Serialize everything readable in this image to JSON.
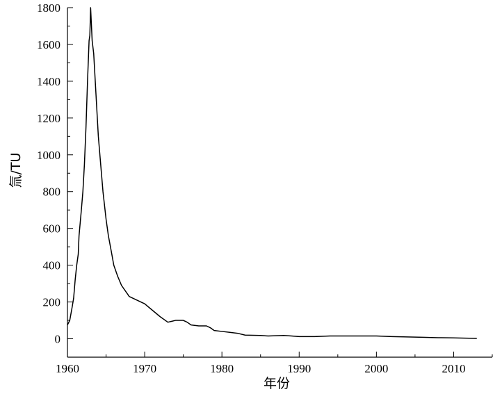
{
  "chart_data": {
    "type": "line",
    "title": "",
    "xlabel": "年份",
    "ylabel": "氚/TU",
    "xlim": [
      1960,
      2015
    ],
    "ylim": [
      -100,
      1800
    ],
    "x_ticks": [
      1960,
      1970,
      1980,
      1990,
      2000,
      2010
    ],
    "x_tick_labels": [
      "1960",
      "1970",
      "1980",
      "1990",
      "2000",
      "2010"
    ],
    "y_ticks": [
      0,
      200,
      400,
      600,
      800,
      1000,
      1200,
      1400,
      1600,
      1800
    ],
    "y_tick_labels": [
      "0",
      "200",
      "400",
      "600",
      "800",
      "1000",
      "1200",
      "1400",
      "1600",
      "1800"
    ],
    "grid": false,
    "series": [
      {
        "color": "#000000",
        "points": [
          [
            1960.0,
            75
          ],
          [
            1960.3,
            100
          ],
          [
            1960.6,
            170
          ],
          [
            1960.8,
            220
          ],
          [
            1961.0,
            320
          ],
          [
            1961.2,
            400
          ],
          [
            1961.4,
            460
          ],
          [
            1961.5,
            560
          ],
          [
            1961.8,
            700
          ],
          [
            1962.0,
            800
          ],
          [
            1962.2,
            950
          ],
          [
            1962.4,
            1150
          ],
          [
            1962.6,
            1400
          ],
          [
            1962.8,
            1620
          ],
          [
            1962.9,
            1650
          ],
          [
            1963.0,
            1800
          ],
          [
            1963.2,
            1620
          ],
          [
            1963.4,
            1550
          ],
          [
            1963.6,
            1400
          ],
          [
            1963.8,
            1250
          ],
          [
            1964.0,
            1100
          ],
          [
            1964.3,
            950
          ],
          [
            1964.6,
            800
          ],
          [
            1965.0,
            650
          ],
          [
            1965.3,
            560
          ],
          [
            1965.7,
            470
          ],
          [
            1966.0,
            400
          ],
          [
            1966.5,
            340
          ],
          [
            1967.0,
            290
          ],
          [
            1967.5,
            260
          ],
          [
            1968.0,
            230
          ],
          [
            1969.0,
            210
          ],
          [
            1970.0,
            190
          ],
          [
            1971.0,
            155
          ],
          [
            1972.0,
            120
          ],
          [
            1973.0,
            90
          ],
          [
            1973.5,
            95
          ],
          [
            1974.0,
            100
          ],
          [
            1975.0,
            100
          ],
          [
            1975.5,
            90
          ],
          [
            1976.0,
            75
          ],
          [
            1977.0,
            70
          ],
          [
            1978.0,
            70
          ],
          [
            1978.5,
            60
          ],
          [
            1979.0,
            45
          ],
          [
            1980.0,
            40
          ],
          [
            1981.0,
            35
          ],
          [
            1982.0,
            30
          ],
          [
            1983.0,
            20
          ],
          [
            1985.0,
            18
          ],
          [
            1986.0,
            15
          ],
          [
            1988.0,
            18
          ],
          [
            1989.0,
            15
          ],
          [
            1990.0,
            12
          ],
          [
            1992.0,
            12
          ],
          [
            1994.0,
            15
          ],
          [
            1996.0,
            15
          ],
          [
            1998.0,
            15
          ],
          [
            2000.0,
            15
          ],
          [
            2002.0,
            12
          ],
          [
            2004.0,
            10
          ],
          [
            2006.0,
            8
          ],
          [
            2008.0,
            6
          ],
          [
            2010.0,
            5
          ],
          [
            2012.0,
            3
          ],
          [
            2013.0,
            2
          ]
        ]
      }
    ]
  }
}
